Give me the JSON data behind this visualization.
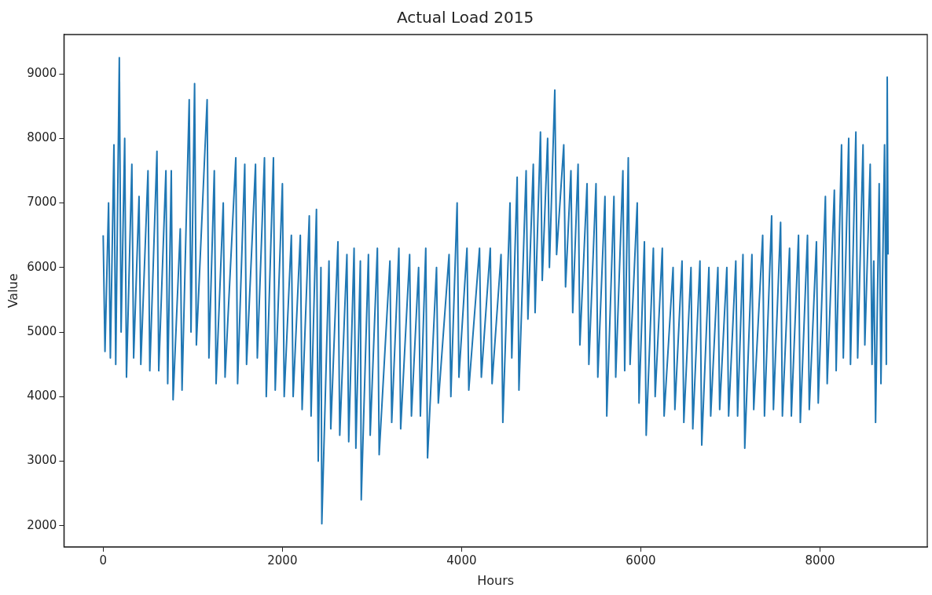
{
  "chart_data": {
    "type": "line",
    "title": "Actual Load 2015",
    "xlabel": "Hours",
    "ylabel": "Value",
    "xlim": [
      -438,
      9197
    ],
    "ylim": [
      1670,
      9610
    ],
    "xticks": [
      0,
      2000,
      4000,
      6000,
      8000
    ],
    "yticks": [
      2000,
      3000,
      4000,
      5000,
      6000,
      7000,
      8000,
      9000
    ],
    "grid": false,
    "legend": false,
    "marker": "none",
    "line_style": "solid",
    "series": [
      {
        "color": "#1f77b4",
        "x": [
          0,
          20,
          60,
          80,
          120,
          140,
          180,
          200,
          240,
          260,
          320,
          340,
          400,
          420,
          500,
          520,
          600,
          620,
          700,
          720,
          760,
          780,
          860,
          880,
          960,
          980,
          1020,
          1040,
          1160,
          1180,
          1240,
          1260,
          1340,
          1360,
          1480,
          1500,
          1580,
          1600,
          1700,
          1720,
          1800,
          1820,
          1900,
          1920,
          2000,
          2020,
          2100,
          2120,
          2200,
          2220,
          2300,
          2320,
          2380,
          2400,
          2430,
          2440,
          2520,
          2540,
          2620,
          2640,
          2720,
          2740,
          2800,
          2820,
          2870,
          2880,
          2960,
          2980,
          3060,
          3080,
          3200,
          3220,
          3300,
          3320,
          3420,
          3440,
          3520,
          3540,
          3600,
          3620,
          3720,
          3740,
          3860,
          3880,
          3950,
          3970,
          4060,
          4080,
          4200,
          4220,
          4320,
          4340,
          4440,
          4460,
          4540,
          4560,
          4620,
          4640,
          4720,
          4740,
          4800,
          4820,
          4880,
          4900,
          4960,
          4980,
          5040,
          5060,
          5140,
          5160,
          5220,
          5240,
          5300,
          5320,
          5400,
          5420,
          5500,
          5520,
          5600,
          5620,
          5700,
          5720,
          5800,
          5820,
          5860,
          5880,
          5960,
          5980,
          6040,
          6060,
          6140,
          6160,
          6240,
          6260,
          6360,
          6380,
          6460,
          6480,
          6560,
          6580,
          6660,
          6680,
          6760,
          6780,
          6860,
          6880,
          6960,
          6980,
          7060,
          7080,
          7140,
          7160,
          7240,
          7260,
          7360,
          7380,
          7460,
          7480,
          7560,
          7580,
          7660,
          7680,
          7760,
          7780,
          7860,
          7880,
          7960,
          7980,
          8060,
          8080,
          8160,
          8180,
          8240,
          8260,
          8320,
          8340,
          8400,
          8420,
          8480,
          8500,
          8560,
          8580,
          8600,
          8620,
          8660,
          8680,
          8720,
          8740,
          8750,
          8759
        ],
        "values": [
          6500,
          4700,
          7000,
          4600,
          7900,
          4500,
          9250,
          5000,
          8000,
          4300,
          7600,
          4600,
          7100,
          4500,
          7500,
          4400,
          7800,
          4400,
          7500,
          4200,
          7500,
          3950,
          6600,
          4100,
          8600,
          5000,
          8850,
          4800,
          8600,
          4600,
          7500,
          4200,
          7000,
          4300,
          7700,
          4200,
          7600,
          4500,
          7600,
          4600,
          7700,
          4000,
          7700,
          4100,
          7300,
          4000,
          6500,
          4000,
          6500,
          3800,
          6800,
          3700,
          6900,
          3000,
          6000,
          2030,
          6100,
          3500,
          6400,
          3400,
          6200,
          3300,
          6300,
          3200,
          6100,
          2400,
          6200,
          3400,
          6300,
          3100,
          6100,
          3600,
          6300,
          3500,
          6200,
          3700,
          6000,
          3700,
          6300,
          3050,
          6000,
          3900,
          6200,
          4000,
          7000,
          4300,
          6300,
          4100,
          6300,
          4300,
          6300,
          4200,
          6200,
          3600,
          7000,
          4600,
          7400,
          4100,
          7500,
          5200,
          7600,
          5300,
          8100,
          5800,
          8000,
          6000,
          8750,
          6200,
          7900,
          5700,
          7500,
          5300,
          7600,
          4800,
          7300,
          4500,
          7300,
          4300,
          7100,
          3700,
          7100,
          4300,
          7500,
          4400,
          7700,
          4500,
          7000,
          3900,
          6400,
          3400,
          6300,
          4000,
          6300,
          3700,
          6000,
          3800,
          6100,
          3600,
          6000,
          3500,
          6100,
          3250,
          6000,
          3700,
          6000,
          3800,
          6000,
          3700,
          6100,
          3700,
          6200,
          3200,
          6200,
          3800,
          6500,
          3700,
          6800,
          3800,
          6700,
          3700,
          6300,
          3700,
          6500,
          3600,
          6500,
          3800,
          6400,
          3900,
          7100,
          4200,
          7200,
          4400,
          7900,
          4600,
          8000,
          4500,
          8100,
          4600,
          7900,
          4800,
          7600,
          4500,
          6100,
          3600,
          7300,
          4200,
          7900,
          4500,
          8950,
          6200
        ]
      }
    ]
  }
}
